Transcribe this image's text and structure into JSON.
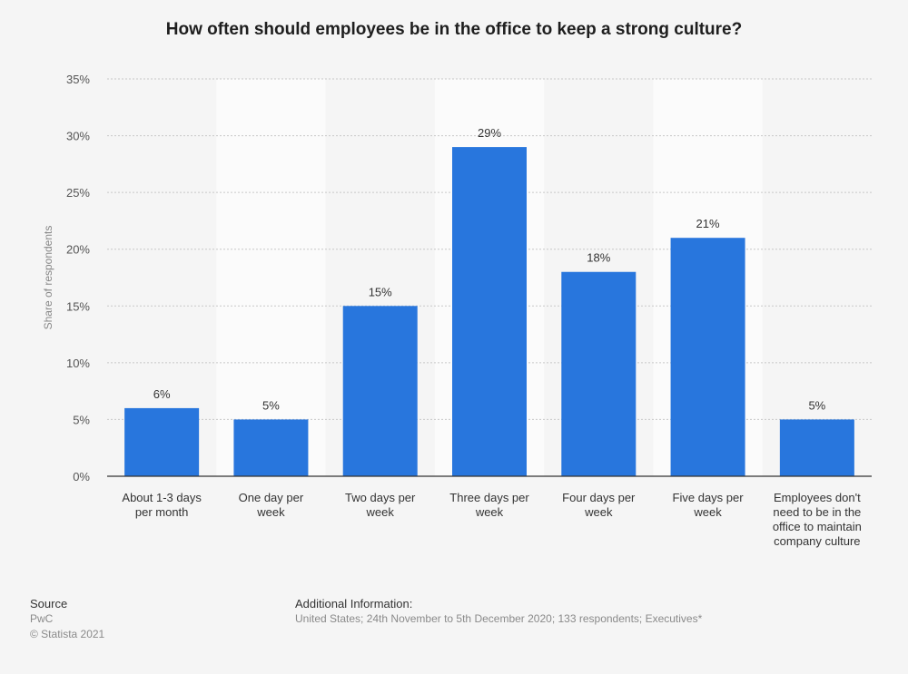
{
  "chart_data": {
    "type": "bar",
    "title": "How often should employees be in the office to keep a strong culture?",
    "xlabel": "",
    "ylabel": "Share of respondents",
    "ylim": [
      0,
      35
    ],
    "yticks": [
      "0%",
      "5%",
      "10%",
      "15%",
      "20%",
      "25%",
      "30%",
      "35%"
    ],
    "grid": true,
    "categories": [
      [
        "About 1-3 days",
        "per month"
      ],
      [
        "One day per",
        "week"
      ],
      [
        "Two days per",
        "week"
      ],
      [
        "Three days per",
        "week"
      ],
      [
        "Four days per",
        "week"
      ],
      [
        "Five days per",
        "week"
      ],
      [
        "Employees don't",
        "need to be in the",
        "office to maintain",
        "company culture"
      ]
    ],
    "values": [
      6,
      5,
      15,
      29,
      18,
      21,
      5
    ],
    "labels": [
      "6%",
      "5%",
      "15%",
      "29%",
      "18%",
      "21%",
      "5%"
    ],
    "bar_color": "#2876dd"
  },
  "footer": {
    "source_heading": "Source",
    "source_name": "PwC",
    "copyright": "© Statista 2021",
    "info_heading": "Additional Information:",
    "info_text": "United States; 24th November to 5th December 2020; 133 respondents; Executives*"
  }
}
